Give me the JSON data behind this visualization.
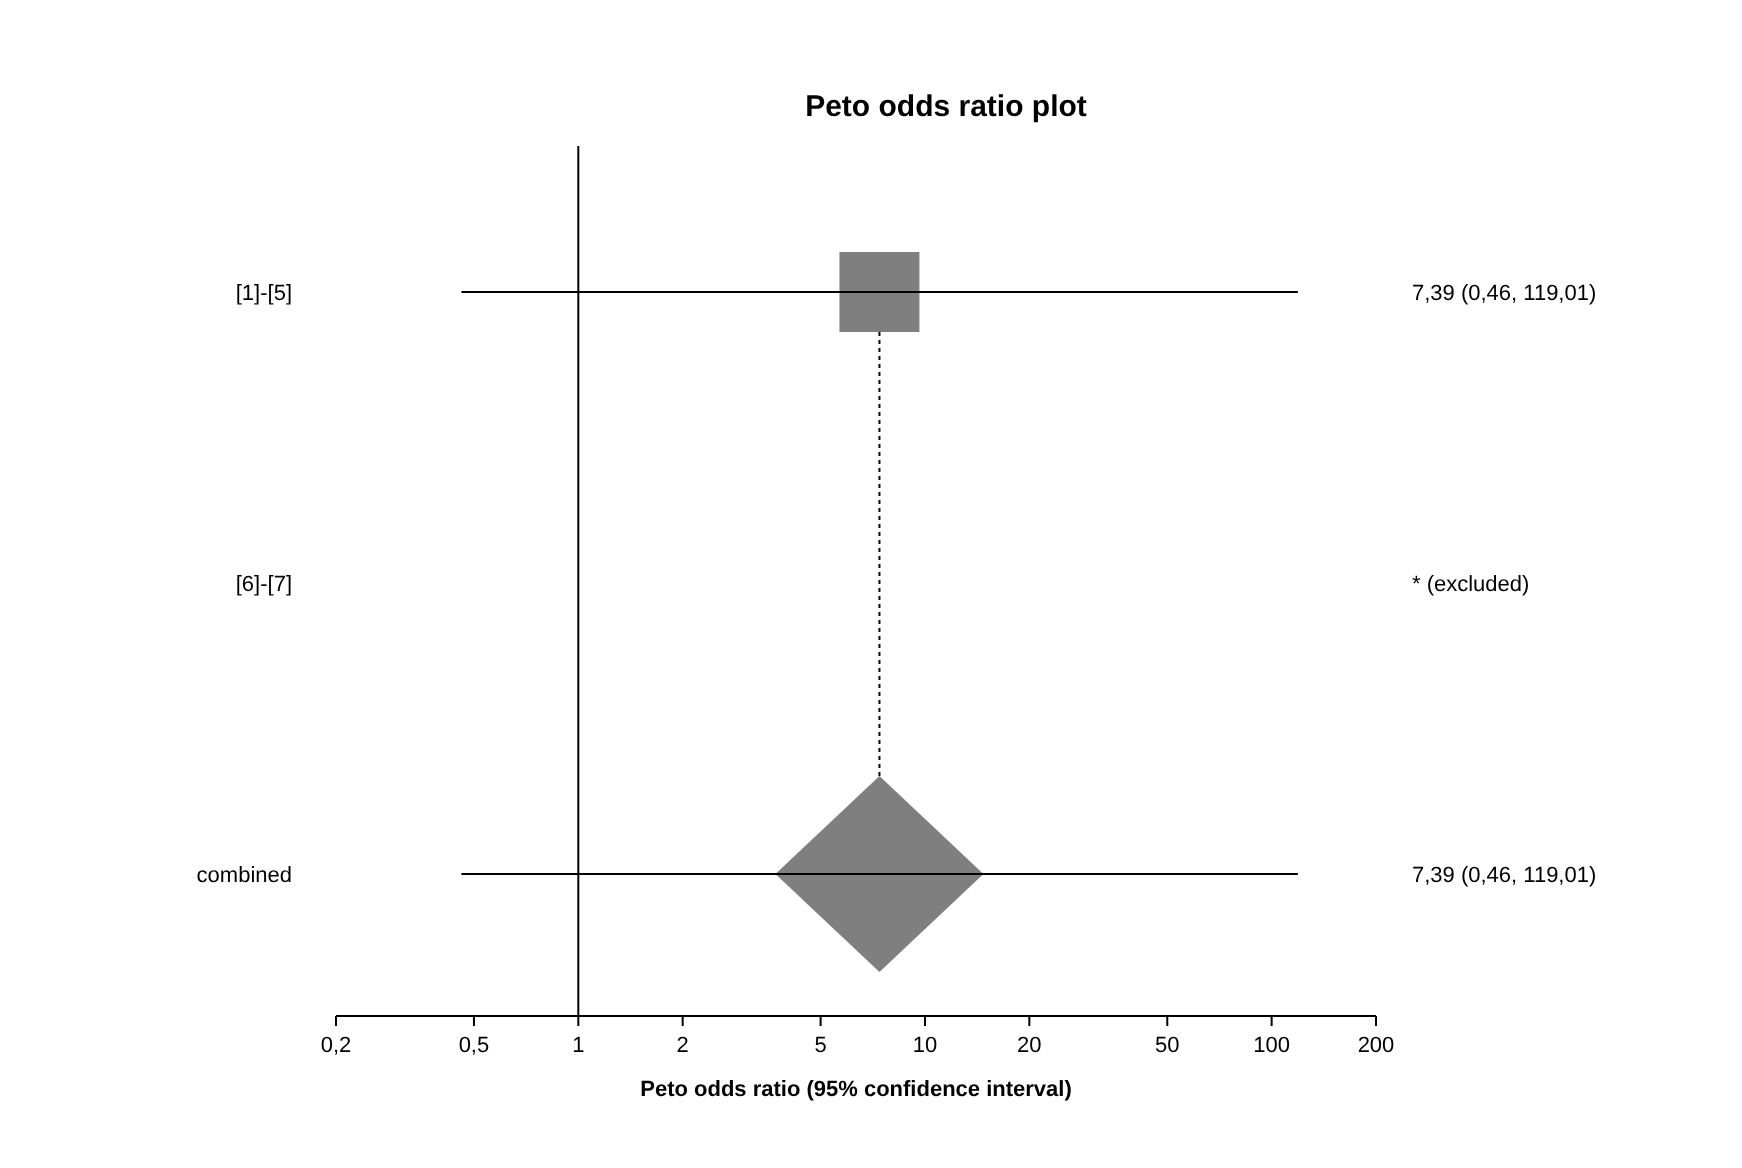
{
  "chart_data": {
    "type": "scatter",
    "orientation": "horizontal",
    "title": "Peto odds ratio plot",
    "xlabel": "Peto odds ratio (95% confidence interval)",
    "categories": [
      "[1]-[5]",
      "[6]-[7]",
      "combined"
    ],
    "log": "x",
    "xlim": [
      0.2,
      200
    ],
    "xticks": [
      {
        "value": 0.2,
        "label": "0,2"
      },
      {
        "value": 0.5,
        "label": "0,5"
      },
      1,
      2,
      5,
      10,
      20,
      50,
      100,
      200
    ],
    "grid": false,
    "series": [
      {
        "color": "#7f7f7f",
        "marker": "square",
        "values": [
          7.39,
          null,
          null
        ],
        "errors": [
          [
            0.46,
            119.01
          ],
          null,
          null
        ]
      },
      {
        "color": "#7f7f7f",
        "marker": "diamond",
        "values": [
          null,
          null,
          7.39
        ],
        "errors": [
          null,
          null,
          [
            0.46,
            119.01
          ]
        ]
      }
    ],
    "annotations": [
      "7,39 (0,46, 119,01)",
      "* (excluded)",
      "7,39 (0,46, 119,01)"
    ],
    "ref_lines": [
      {
        "axis": "x",
        "value": 1,
        "color": "#000000",
        "line_style": "solid"
      },
      {
        "axis": "x",
        "value": 7.39,
        "color": "#000000",
        "line_style": "dotted"
      }
    ]
  }
}
